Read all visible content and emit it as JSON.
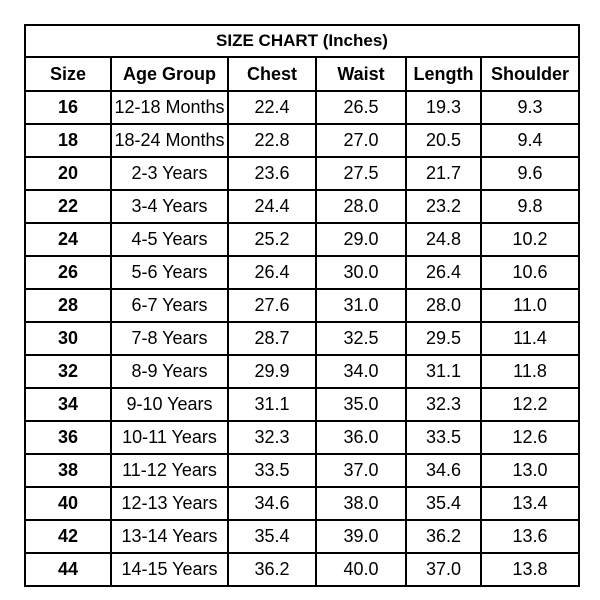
{
  "title": "SIZE CHART (Inches)",
  "columns": [
    "Size",
    "Age Group",
    "Chest",
    "Waist",
    "Length",
    "Shoulder"
  ],
  "rows": [
    [
      "16",
      "12-18 Months",
      "22.4",
      "26.5",
      "19.3",
      "9.3"
    ],
    [
      "18",
      "18-24 Months",
      "22.8",
      "27.0",
      "20.5",
      "9.4"
    ],
    [
      "20",
      "2-3 Years",
      "23.6",
      "27.5",
      "21.7",
      "9.6"
    ],
    [
      "22",
      "3-4 Years",
      "24.4",
      "28.0",
      "23.2",
      "9.8"
    ],
    [
      "24",
      "4-5 Years",
      "25.2",
      "29.0",
      "24.8",
      "10.2"
    ],
    [
      "26",
      "5-6 Years",
      "26.4",
      "30.0",
      "26.4",
      "10.6"
    ],
    [
      "28",
      "6-7 Years",
      "27.6",
      "31.0",
      "28.0",
      "11.0"
    ],
    [
      "30",
      "7-8 Years",
      "28.7",
      "32.5",
      "29.5",
      "11.4"
    ],
    [
      "32",
      "8-9 Years",
      "29.9",
      "34.0",
      "31.1",
      "11.8"
    ],
    [
      "34",
      "9-10 Years",
      "31.1",
      "35.0",
      "32.3",
      "12.2"
    ],
    [
      "36",
      "10-11 Years",
      "32.3",
      "36.0",
      "33.5",
      "12.6"
    ],
    [
      "38",
      "11-12 Years",
      "33.5",
      "37.0",
      "34.6",
      "13.0"
    ],
    [
      "40",
      "12-13 Years",
      "34.6",
      "38.0",
      "35.4",
      "13.4"
    ],
    [
      "42",
      "13-14 Years",
      "35.4",
      "39.0",
      "36.2",
      "13.6"
    ],
    [
      "44",
      "14-15 Years",
      "36.2",
      "40.0",
      "37.0",
      "13.8"
    ]
  ]
}
